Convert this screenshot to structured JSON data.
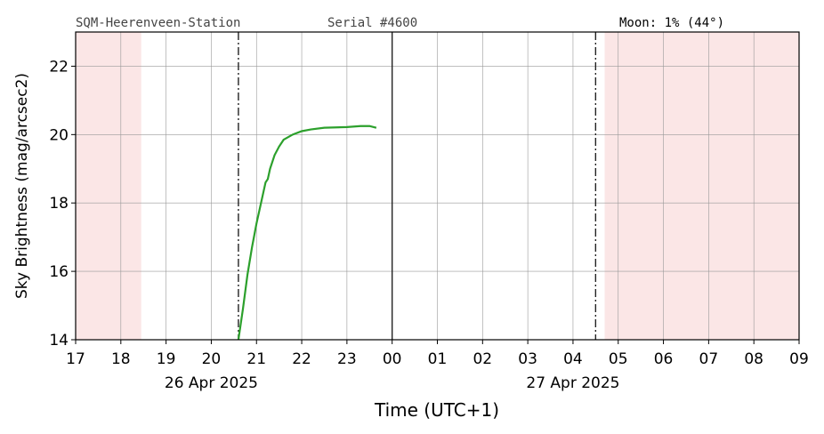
{
  "chart_data": {
    "type": "line",
    "station": "SQM-Heerenveen-Station",
    "serial": "Serial #4600",
    "moon": "Moon: 1% (44°)",
    "x_label": "Time (UTC+1)",
    "y_label": "Sky Brightness (mag/arcsec2)",
    "xlim": [
      17,
      33
    ],
    "ylim": [
      14,
      23
    ],
    "xticks": [
      17,
      18,
      19,
      20,
      21,
      22,
      23,
      {
        "value": 24,
        "label": "00"
      },
      {
        "value": 25,
        "label": "01"
      },
      {
        "value": 26,
        "label": "02"
      },
      {
        "value": 27,
        "label": "03"
      },
      {
        "value": 28,
        "label": "04"
      },
      {
        "value": 29,
        "label": "05"
      },
      {
        "value": 30,
        "label": "06"
      },
      {
        "value": 31,
        "label": "07"
      },
      {
        "value": 32,
        "label": "08"
      },
      {
        "value": 33,
        "label": "09"
      }
    ],
    "xticks2": [
      {
        "value": 20,
        "label": "26 Apr 2025"
      },
      {
        "value": 28,
        "label": "27 Apr 2025"
      }
    ],
    "yticks": [
      14,
      16,
      18,
      20,
      22
    ],
    "grid": true,
    "shaded_regions": [
      [
        17,
        18.45
      ],
      [
        28.7,
        33
      ]
    ],
    "shade_color": "#fbe6e6",
    "dashdot_lines": [
      20.6,
      28.5
    ],
    "solid_lines": [
      24
    ],
    "series": [
      {
        "name": "Sky Brightness",
        "color": "#2ca02c",
        "x": [
          20.6,
          20.7,
          20.8,
          20.9,
          21.0,
          21.1,
          21.2,
          21.25,
          21.3,
          21.4,
          21.5,
          21.6,
          21.8,
          22.0,
          22.2,
          22.5,
          23.0,
          23.3,
          23.5,
          23.65
        ],
        "values": [
          14.0,
          14.9,
          15.9,
          16.7,
          17.4,
          18.0,
          18.6,
          18.7,
          19.0,
          19.4,
          19.65,
          19.85,
          20.0,
          20.1,
          20.15,
          20.2,
          20.22,
          20.25,
          20.25,
          20.2
        ]
      }
    ]
  }
}
